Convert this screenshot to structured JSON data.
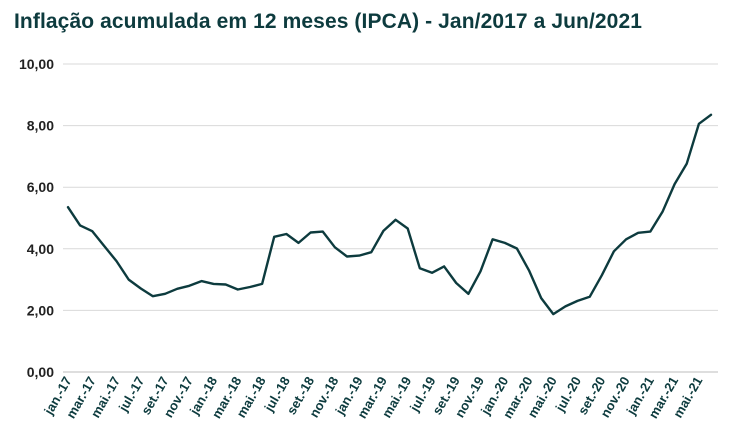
{
  "chart_data": {
    "type": "line",
    "title": "Inflação acumulada em 12 meses (IPCA) - Jan/2017 a Jun/2021",
    "xlabel": "",
    "ylabel": "",
    "ylim": [
      0,
      10
    ],
    "yticks": [
      "0,00",
      "2,00",
      "4,00",
      "6,00",
      "8,00",
      "10,00"
    ],
    "grid": true,
    "x": [
      "jan.-17",
      "fev.-17",
      "mar.-17",
      "abr.-17",
      "mai.-17",
      "jun.-17",
      "jul.-17",
      "ago.-17",
      "set.-17",
      "out.-17",
      "nov.-17",
      "dez.-17",
      "jan.-18",
      "fev.-18",
      "mar.-18",
      "abr.-18",
      "mai.-18",
      "jun.-18",
      "jul.-18",
      "ago.-18",
      "set.-18",
      "out.-18",
      "nov.-18",
      "dez.-18",
      "jan.-19",
      "fev.-19",
      "mar.-19",
      "abr.-19",
      "mai.-19",
      "jun.-19",
      "jul.-19",
      "ago.-19",
      "set.-19",
      "out.-19",
      "nov.-19",
      "dez.-19",
      "jan.-20",
      "fev.-20",
      "mar.-20",
      "abr.-20",
      "mai.-20",
      "jun.-20",
      "jul.-20",
      "ago.-20",
      "set.-20",
      "out.-20",
      "nov.-20",
      "dez.-20",
      "jan.-21",
      "fev.-21",
      "mar.-21",
      "abr.-21",
      "mai.-21",
      "jun.-21"
    ],
    "xtick_labels": [
      "jan.-17",
      "mar.-17",
      "mai.-17",
      "jul.-17",
      "set.-17",
      "nov.-17",
      "jan.-18",
      "mar.-18",
      "mai.-18",
      "jul.-18",
      "set.-18",
      "nov.-18",
      "jan.-19",
      "mar.-19",
      "mai.-19",
      "jul.-19",
      "set.-19",
      "nov.-19",
      "jan.-20",
      "mar.-20",
      "mai.-20",
      "jul.-20",
      "set.-20",
      "nov.-20",
      "jan.-21",
      "mar.-21",
      "mai.-21"
    ],
    "series": [
      {
        "name": "IPCA acumulado 12 meses",
        "color": "#0d3b3e",
        "values": [
          5.35,
          4.76,
          4.57,
          4.08,
          3.6,
          3.0,
          2.71,
          2.46,
          2.54,
          2.7,
          2.8,
          2.95,
          2.86,
          2.84,
          2.68,
          2.76,
          2.86,
          4.39,
          4.48,
          4.19,
          4.53,
          4.56,
          4.05,
          3.75,
          3.78,
          3.89,
          4.58,
          4.94,
          4.66,
          3.37,
          3.22,
          3.43,
          2.89,
          2.54,
          3.27,
          4.31,
          4.19,
          4.01,
          3.3,
          2.4,
          1.88,
          2.13,
          2.31,
          2.44,
          3.14,
          3.92,
          4.31,
          4.52,
          4.56,
          5.2,
          6.1,
          6.76,
          8.06,
          8.35
        ]
      }
    ]
  }
}
